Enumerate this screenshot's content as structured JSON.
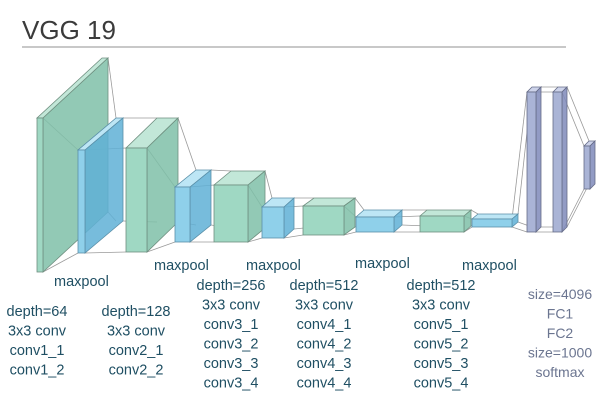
{
  "title": "VGG 19",
  "colors": {
    "conv_front": "#9fd8c3",
    "conv_side": "#7fbfa8",
    "conv_top": "#c2e7d8",
    "pool_front": "#8fd0ea",
    "pool_side": "#5fb0d6",
    "pool_top": "#bde6f5",
    "fc_front": "#aab4d6",
    "fc_side": "#7f8aba",
    "fc_top": "#cdd3ea",
    "text": "#1f4f63",
    "fc_text": "#6b7590",
    "title_rule": "#a6a6a6"
  },
  "pool_labels": [
    "maxpool",
    "maxpool",
    "maxpool",
    "maxpool",
    "maxpool"
  ],
  "groups": [
    {
      "lines": [
        "depth=64",
        "3x3 conv",
        "conv1_1",
        "conv1_2"
      ]
    },
    {
      "lines": [
        "depth=128",
        "3x3 conv",
        "conv2_1",
        "conv2_2"
      ]
    },
    {
      "lines": [
        "depth=256",
        "3x3 conv",
        "conv3_1",
        "conv3_2",
        "conv3_3",
        "conv3_4"
      ]
    },
    {
      "lines": [
        "depth=512",
        "3x3 conv",
        "conv4_1",
        "conv4_2",
        "conv4_3",
        "conv4_4"
      ]
    },
    {
      "lines": [
        "depth=512",
        "3x3 conv",
        "conv5_1",
        "conv5_2",
        "conv5_3",
        "conv5_4"
      ]
    }
  ],
  "fc_lines": [
    "size=4096",
    "FC1",
    "FC2",
    "size=1000",
    "softmax"
  ]
}
